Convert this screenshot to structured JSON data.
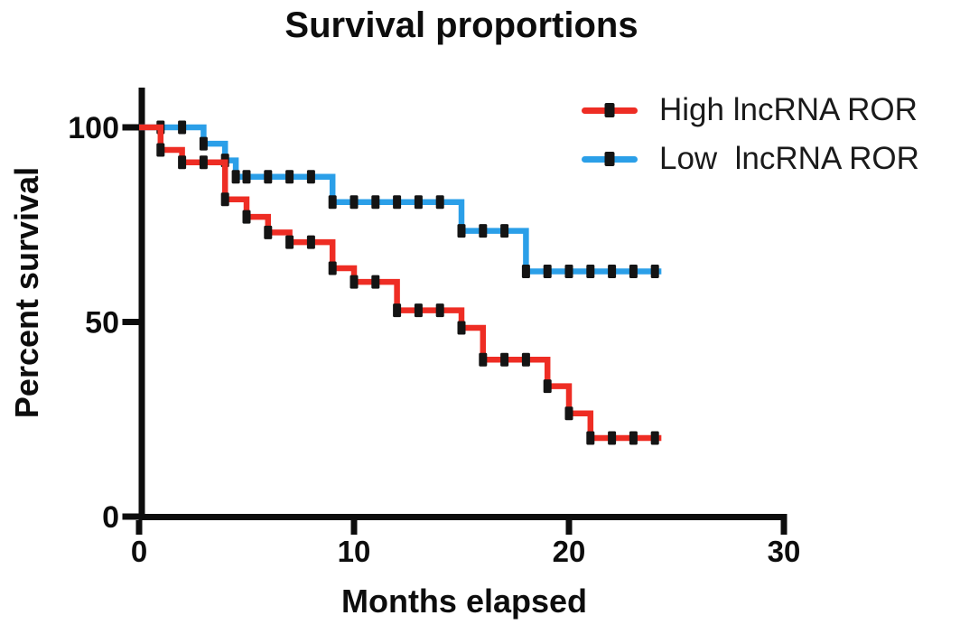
{
  "chart_data": {
    "type": "line",
    "subtype": "kaplan-meier-step-survival",
    "title": "Survival proportions",
    "xlabel": "Months elapsed",
    "ylabel": "Percent survival",
    "xlim": [
      0,
      30
    ],
    "ylim": [
      0,
      100
    ],
    "grid": "off",
    "legend_position": "top-right",
    "axis_color": "#0d0d0d",
    "marker_color": "#141414",
    "end_month": 24.3,
    "x_ticks": [
      {
        "label": "0",
        "month": 0
      },
      {
        "label": "10",
        "month": 10
      },
      {
        "label": "20",
        "month": 20
      },
      {
        "label": "30",
        "month": 30
      }
    ],
    "y_ticks": [
      {
        "label": "0",
        "pct": 0
      },
      {
        "label": "50",
        "pct": 50
      },
      {
        "label": "100",
        "pct": 100
      }
    ],
    "series": [
      {
        "key": "high",
        "name": "High lncRNA ROR",
        "color": "#ee2d24",
        "steps": [
          [
            0,
            100
          ],
          [
            1,
            94.2
          ],
          [
            2,
            91
          ],
          [
            4,
            81.5
          ],
          [
            5,
            77
          ],
          [
            6,
            73
          ],
          [
            7,
            70.5
          ],
          [
            9,
            63.8
          ],
          [
            10,
            60.3
          ],
          [
            12,
            53
          ],
          [
            15,
            48.5
          ],
          [
            16,
            40.3
          ],
          [
            19,
            33.5
          ],
          [
            20,
            26.5
          ],
          [
            21,
            20.2
          ]
        ],
        "markers": [
          [
            1,
            94.2
          ],
          [
            2,
            91
          ],
          [
            3,
            91
          ],
          [
            4,
            81.5
          ],
          [
            5,
            77
          ],
          [
            6,
            73
          ],
          [
            7,
            70.5
          ],
          [
            8,
            70.5
          ],
          [
            9,
            63.8
          ],
          [
            10,
            60.3
          ],
          [
            11,
            60.3
          ],
          [
            12,
            53
          ],
          [
            13,
            53
          ],
          [
            14,
            53
          ],
          [
            15,
            48.5
          ],
          [
            16,
            40.3
          ],
          [
            17,
            40.3
          ],
          [
            18,
            40.3
          ],
          [
            19,
            33.5
          ],
          [
            20,
            26.5
          ],
          [
            21,
            20.2
          ],
          [
            22,
            20.2
          ],
          [
            23,
            20.2
          ],
          [
            24,
            20.2
          ]
        ]
      },
      {
        "key": "low",
        "name": "Low  lncRNA ROR",
        "color": "#2b9fe8",
        "steps": [
          [
            0,
            100
          ],
          [
            3,
            95.8
          ],
          [
            4,
            91.5
          ],
          [
            4.5,
            87.3
          ],
          [
            9,
            80.8
          ],
          [
            15,
            73.4
          ],
          [
            18,
            63
          ]
        ],
        "markers": [
          [
            1,
            100
          ],
          [
            2,
            100
          ],
          [
            3,
            95.8
          ],
          [
            4,
            91.5
          ],
          [
            4.5,
            87.3
          ],
          [
            5,
            87.3
          ],
          [
            6,
            87.3
          ],
          [
            7,
            87.3
          ],
          [
            8,
            87.3
          ],
          [
            9,
            80.8
          ],
          [
            10,
            80.8
          ],
          [
            11,
            80.8
          ],
          [
            12,
            80.8
          ],
          [
            13,
            80.8
          ],
          [
            14,
            80.8
          ],
          [
            15,
            73.4
          ],
          [
            16,
            73.4
          ],
          [
            17,
            73.4
          ],
          [
            18,
            63
          ],
          [
            19,
            63
          ],
          [
            20,
            63
          ],
          [
            21,
            63
          ],
          [
            22,
            63
          ],
          [
            23,
            63
          ],
          [
            24,
            63
          ]
        ]
      }
    ]
  },
  "legend": {
    "entries": [
      {
        "label": "High lncRNA ROR",
        "color": "#ee2d24"
      },
      {
        "label": "Low  lncRNA ROR",
        "color": "#2b9fe8"
      }
    ]
  }
}
